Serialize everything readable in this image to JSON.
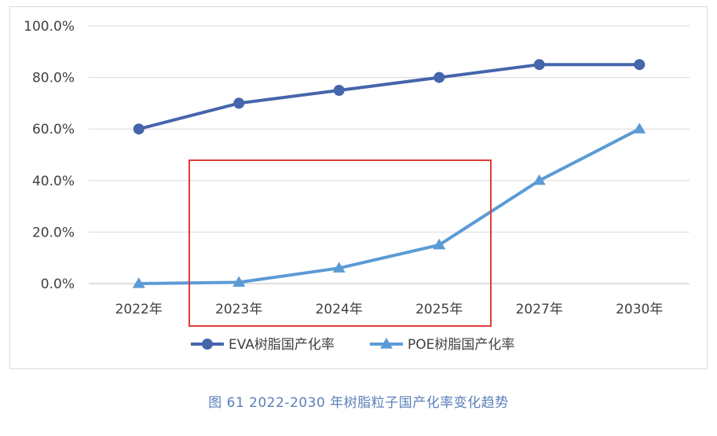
{
  "chart_data": {
    "type": "line",
    "categories": [
      "2022年",
      "2023年",
      "2024年",
      "2025年",
      "2027年",
      "2030年"
    ],
    "yticks": [
      "0.0%",
      "20.0%",
      "40.0%",
      "60.0%",
      "80.0%",
      "100.0%"
    ],
    "ylim": [
      0,
      100
    ],
    "grid": true,
    "legend_position": "bottom",
    "series": [
      {
        "name": "EVA树脂国产化率",
        "values": [
          60,
          70,
          75,
          80,
          85,
          85
        ],
        "marker": "circle",
        "color": "#4565ac"
      },
      {
        "name": "POE树脂国产化率",
        "values": [
          0,
          0.5,
          6,
          15,
          40,
          60
        ],
        "marker": "triangle",
        "color": "#5b9bd5"
      }
    ],
    "highlight": {
      "from_category": "2023年",
      "to_category": "2025年",
      "color": "#e03c3c"
    }
  },
  "caption": "图 61    2022-2030 年树脂粒子国产化率变化趋势"
}
